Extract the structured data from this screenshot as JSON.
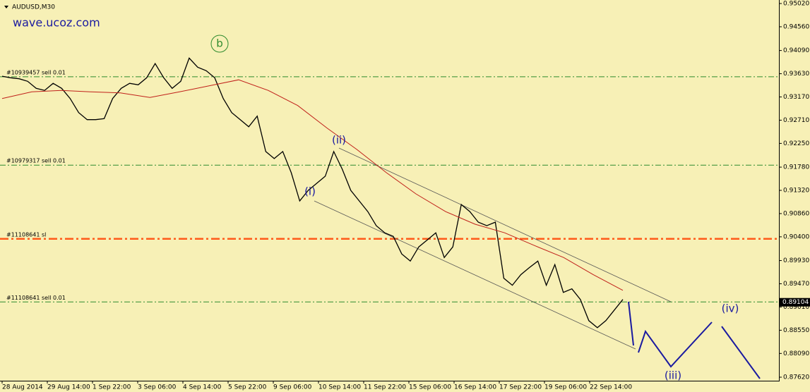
{
  "chart_data": {
    "type": "line",
    "title": "AUDUSD,M30",
    "watermark": "wave.ucoz.com",
    "ylim": [
      0.8755,
      0.9509
    ],
    "yticks": [
      {
        "value": 0.9502,
        "label": "0.95020"
      },
      {
        "value": 0.9456,
        "label": "0.94560"
      },
      {
        "value": 0.9409,
        "label": "0.94090"
      },
      {
        "value": 0.9363,
        "label": "0.93630"
      },
      {
        "value": 0.9317,
        "label": "0.93170"
      },
      {
        "value": 0.9271,
        "label": "0.92710"
      },
      {
        "value": 0.9225,
        "label": "0.92250"
      },
      {
        "value": 0.9178,
        "label": "0.91780"
      },
      {
        "value": 0.9132,
        "label": "0.91320"
      },
      {
        "value": 0.9086,
        "label": "0.90860"
      },
      {
        "value": 0.904,
        "label": "0.90400"
      },
      {
        "value": 0.8993,
        "label": "0.89930"
      },
      {
        "value": 0.8947,
        "label": "0.89470"
      },
      {
        "value": 0.8901,
        "label": "0.89010"
      },
      {
        "value": 0.8855,
        "label": "0.88550"
      },
      {
        "value": 0.8809,
        "label": "0.88090"
      },
      {
        "value": 0.8762,
        "label": "0.87620"
      }
    ],
    "xtick_labels": [
      "28 Aug 2014",
      "29 Aug 14:00",
      "1 Sep 22:00",
      "3 Sep 06:00",
      "4 Sep 14:00",
      "5 Sep 22:00",
      "9 Sep 06:00",
      "10 Sep 14:00",
      "11 Sep 22:00",
      "15 Sep 06:00",
      "16 Sep 14:00",
      "17 Sep 22:00",
      "19 Sep 06:00",
      "22 Sep 14:00"
    ],
    "series": [
      {
        "name": "AUDUSD",
        "color": "#000000",
        "values": [
          0.9358,
          0.9355,
          0.9353,
          0.9348,
          0.9334,
          0.933,
          0.9344,
          0.9334,
          0.9314,
          0.9286,
          0.9272,
          0.9272,
          0.9274,
          0.9314,
          0.9334,
          0.9344,
          0.9341,
          0.9355,
          0.9383,
          0.9355,
          0.9334,
          0.9348,
          0.9394,
          0.9376,
          0.9369,
          0.9355,
          0.9314,
          0.9286,
          0.9272,
          0.9258,
          0.9279,
          0.9209,
          0.9195,
          0.9209,
          0.9167,
          0.9111,
          0.9132,
          0.9146,
          0.916,
          0.9209,
          0.9174,
          0.9132,
          0.9111,
          0.909,
          0.9062,
          0.9048,
          0.9041,
          0.9006,
          0.8992,
          0.902,
          0.9034,
          0.9048,
          0.8999,
          0.902,
          0.9104,
          0.909,
          0.9069,
          0.9062,
          0.9069,
          0.8958,
          0.8944,
          0.8965,
          0.8979,
          0.8992,
          0.8944,
          0.8985,
          0.893,
          0.8937,
          0.8916,
          0.8874,
          0.886,
          0.8874,
          0.8895,
          0.8916
        ]
      },
      {
        "name": "MA",
        "color": "#c0201a",
        "values": [
          0.9314,
          0.9327,
          0.933,
          0.9327,
          0.9325,
          0.9316,
          0.9327,
          0.9339,
          0.9351,
          0.933,
          0.93,
          0.9255,
          0.9213,
          0.9167,
          0.9125,
          0.909,
          0.9065,
          0.9048,
          0.9023,
          0.8999,
          0.8965,
          0.8934
        ]
      }
    ],
    "levels": [
      {
        "label": "#10939457 sell 0.01",
        "value": 0.9357,
        "color": "#2e8b2e"
      },
      {
        "label": "#10979317 sell 0.01",
        "value": 0.9182,
        "color": "#2e8b2e"
      },
      {
        "label": "#11108641 sl",
        "value": 0.9036,
        "color": "#ff5a1a"
      },
      {
        "label": "#11108641 sell 0.01",
        "value": 0.8911,
        "color": "#2e8b2e"
      }
    ],
    "last_price": 0.89104,
    "wave_labels": [
      "b",
      "(i)",
      "(ii)",
      "(iii)",
      "(iv)"
    ]
  }
}
